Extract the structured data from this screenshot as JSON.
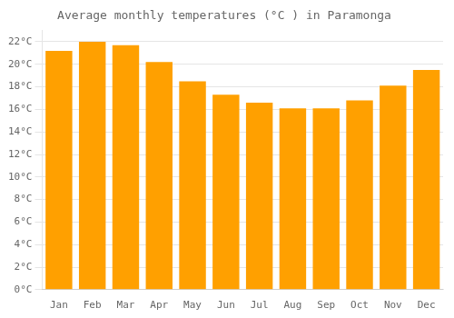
{
  "chart_data": {
    "type": "bar",
    "title": "Average monthly temperatures (°C ) in Paramonga",
    "categories": [
      "Jan",
      "Feb",
      "Mar",
      "Apr",
      "May",
      "Jun",
      "Jul",
      "Aug",
      "Sep",
      "Oct",
      "Nov",
      "Dec"
    ],
    "values": [
      21.2,
      22.0,
      21.7,
      20.2,
      18.5,
      17.3,
      16.6,
      16.1,
      16.1,
      16.8,
      18.1,
      19.5
    ],
    "color": "#FFA000",
    "ylim": [
      0,
      23
    ],
    "yticks": [
      {
        "value": 0,
        "label": "0°C"
      },
      {
        "value": 2,
        "label": "2°C"
      },
      {
        "value": 4,
        "label": "4°C"
      },
      {
        "value": 6,
        "label": "6°C"
      },
      {
        "value": 8,
        "label": "8°C"
      },
      {
        "value": 10,
        "label": "10°C"
      },
      {
        "value": 12,
        "label": "12°C"
      },
      {
        "value": 14,
        "label": "14°C"
      },
      {
        "value": 16,
        "label": "16°C"
      },
      {
        "value": 18,
        "label": "18°C"
      },
      {
        "value": 20,
        "label": "20°C"
      },
      {
        "value": 22,
        "label": "22°C"
      }
    ],
    "grid": true
  }
}
